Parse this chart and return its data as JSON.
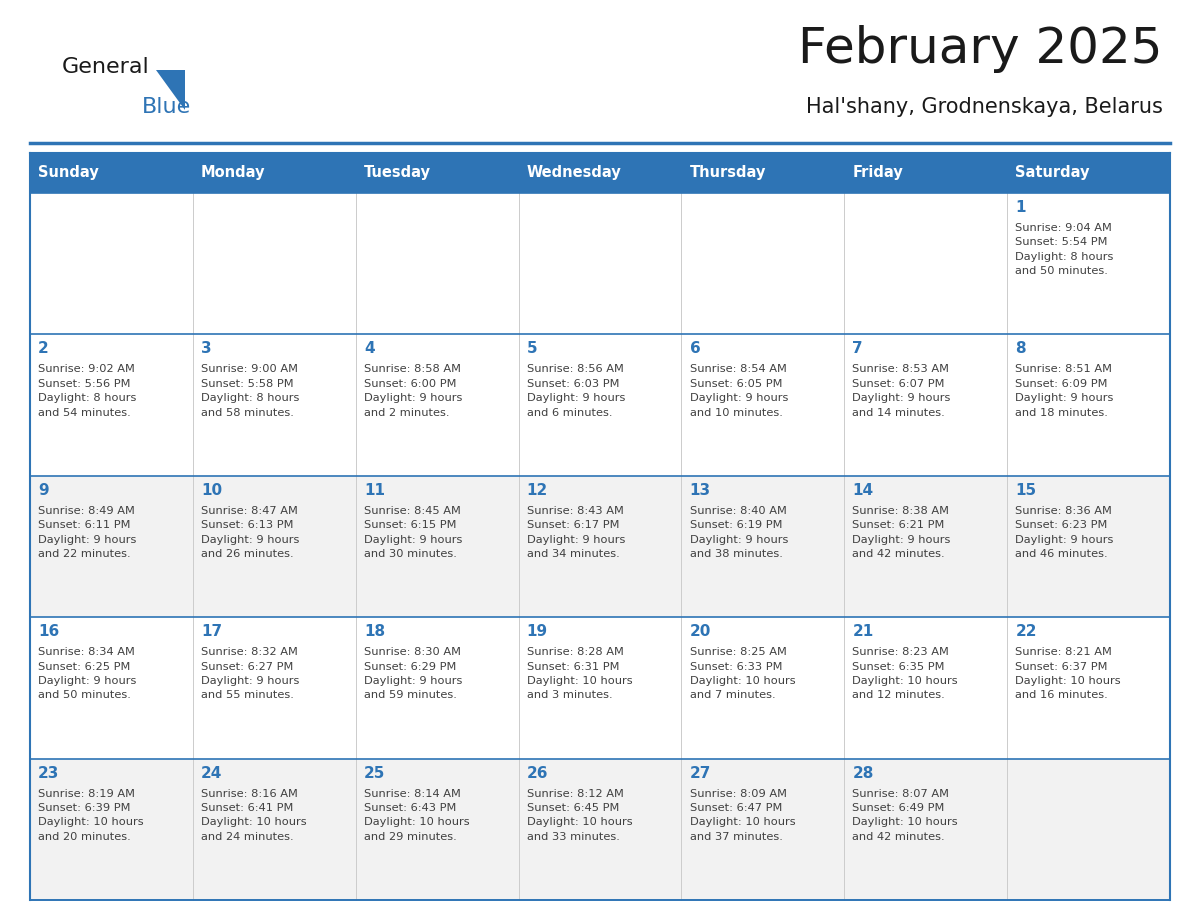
{
  "title": "February 2025",
  "subtitle": "Hal'shany, Grodnenskaya, Belarus",
  "days_of_week": [
    "Sunday",
    "Monday",
    "Tuesday",
    "Wednesday",
    "Thursday",
    "Friday",
    "Saturday"
  ],
  "header_bg": "#2E74B5",
  "header_text": "#FFFFFF",
  "cell_bg_white": "#FFFFFF",
  "cell_bg_gray": "#F2F2F2",
  "separator_color": "#2E74B5",
  "day_number_color": "#2E74B5",
  "info_text_color": "#404040",
  "title_color": "#1a1a1a",
  "row_backgrounds": [
    "#FFFFFF",
    "#FFFFFF",
    "#F2F2F2",
    "#FFFFFF",
    "#F2F2F2"
  ],
  "weeks": [
    [
      {
        "day": null,
        "info": ""
      },
      {
        "day": null,
        "info": ""
      },
      {
        "day": null,
        "info": ""
      },
      {
        "day": null,
        "info": ""
      },
      {
        "day": null,
        "info": ""
      },
      {
        "day": null,
        "info": ""
      },
      {
        "day": 1,
        "info": "Sunrise: 9:04 AM\nSunset: 5:54 PM\nDaylight: 8 hours\nand 50 minutes."
      }
    ],
    [
      {
        "day": 2,
        "info": "Sunrise: 9:02 AM\nSunset: 5:56 PM\nDaylight: 8 hours\nand 54 minutes."
      },
      {
        "day": 3,
        "info": "Sunrise: 9:00 AM\nSunset: 5:58 PM\nDaylight: 8 hours\nand 58 minutes."
      },
      {
        "day": 4,
        "info": "Sunrise: 8:58 AM\nSunset: 6:00 PM\nDaylight: 9 hours\nand 2 minutes."
      },
      {
        "day": 5,
        "info": "Sunrise: 8:56 AM\nSunset: 6:03 PM\nDaylight: 9 hours\nand 6 minutes."
      },
      {
        "day": 6,
        "info": "Sunrise: 8:54 AM\nSunset: 6:05 PM\nDaylight: 9 hours\nand 10 minutes."
      },
      {
        "day": 7,
        "info": "Sunrise: 8:53 AM\nSunset: 6:07 PM\nDaylight: 9 hours\nand 14 minutes."
      },
      {
        "day": 8,
        "info": "Sunrise: 8:51 AM\nSunset: 6:09 PM\nDaylight: 9 hours\nand 18 minutes."
      }
    ],
    [
      {
        "day": 9,
        "info": "Sunrise: 8:49 AM\nSunset: 6:11 PM\nDaylight: 9 hours\nand 22 minutes."
      },
      {
        "day": 10,
        "info": "Sunrise: 8:47 AM\nSunset: 6:13 PM\nDaylight: 9 hours\nand 26 minutes."
      },
      {
        "day": 11,
        "info": "Sunrise: 8:45 AM\nSunset: 6:15 PM\nDaylight: 9 hours\nand 30 minutes."
      },
      {
        "day": 12,
        "info": "Sunrise: 8:43 AM\nSunset: 6:17 PM\nDaylight: 9 hours\nand 34 minutes."
      },
      {
        "day": 13,
        "info": "Sunrise: 8:40 AM\nSunset: 6:19 PM\nDaylight: 9 hours\nand 38 minutes."
      },
      {
        "day": 14,
        "info": "Sunrise: 8:38 AM\nSunset: 6:21 PM\nDaylight: 9 hours\nand 42 minutes."
      },
      {
        "day": 15,
        "info": "Sunrise: 8:36 AM\nSunset: 6:23 PM\nDaylight: 9 hours\nand 46 minutes."
      }
    ],
    [
      {
        "day": 16,
        "info": "Sunrise: 8:34 AM\nSunset: 6:25 PM\nDaylight: 9 hours\nand 50 minutes."
      },
      {
        "day": 17,
        "info": "Sunrise: 8:32 AM\nSunset: 6:27 PM\nDaylight: 9 hours\nand 55 minutes."
      },
      {
        "day": 18,
        "info": "Sunrise: 8:30 AM\nSunset: 6:29 PM\nDaylight: 9 hours\nand 59 minutes."
      },
      {
        "day": 19,
        "info": "Sunrise: 8:28 AM\nSunset: 6:31 PM\nDaylight: 10 hours\nand 3 minutes."
      },
      {
        "day": 20,
        "info": "Sunrise: 8:25 AM\nSunset: 6:33 PM\nDaylight: 10 hours\nand 7 minutes."
      },
      {
        "day": 21,
        "info": "Sunrise: 8:23 AM\nSunset: 6:35 PM\nDaylight: 10 hours\nand 12 minutes."
      },
      {
        "day": 22,
        "info": "Sunrise: 8:21 AM\nSunset: 6:37 PM\nDaylight: 10 hours\nand 16 minutes."
      }
    ],
    [
      {
        "day": 23,
        "info": "Sunrise: 8:19 AM\nSunset: 6:39 PM\nDaylight: 10 hours\nand 20 minutes."
      },
      {
        "day": 24,
        "info": "Sunrise: 8:16 AM\nSunset: 6:41 PM\nDaylight: 10 hours\nand 24 minutes."
      },
      {
        "day": 25,
        "info": "Sunrise: 8:14 AM\nSunset: 6:43 PM\nDaylight: 10 hours\nand 29 minutes."
      },
      {
        "day": 26,
        "info": "Sunrise: 8:12 AM\nSunset: 6:45 PM\nDaylight: 10 hours\nand 33 minutes."
      },
      {
        "day": 27,
        "info": "Sunrise: 8:09 AM\nSunset: 6:47 PM\nDaylight: 10 hours\nand 37 minutes."
      },
      {
        "day": 28,
        "info": "Sunrise: 8:07 AM\nSunset: 6:49 PM\nDaylight: 10 hours\nand 42 minutes."
      },
      {
        "day": null,
        "info": ""
      }
    ]
  ],
  "logo_general_color": "#1a1a1a",
  "logo_blue_color": "#2E74B5",
  "logo_triangle_color": "#2E74B5",
  "fig_width": 11.88,
  "fig_height": 9.18,
  "dpi": 100
}
